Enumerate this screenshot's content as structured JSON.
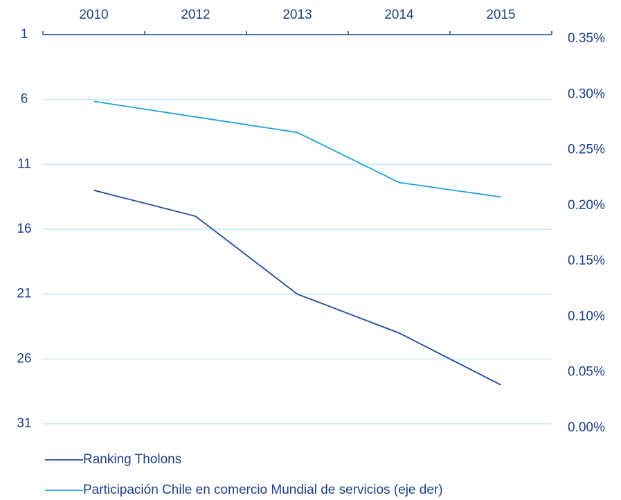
{
  "chart_data": {
    "type": "line",
    "categories": [
      "2010",
      "2012",
      "2013",
      "2014",
      "2015"
    ],
    "series": [
      {
        "name": "Ranking Tholons",
        "color": "#1b4a94",
        "values": [
          13,
          15,
          21,
          24,
          28
        ]
      },
      {
        "name": "Participación Chile en comercio Mundial de servicios (eje der)",
        "color": "#1ea0e0",
        "values": [
          0.29,
          0.276,
          0.262,
          0.217,
          0.204
        ],
        "axis": "y2"
      }
    ],
    "ylim": [
      31,
      1
    ],
    "yticks": [
      1,
      6,
      11,
      16,
      21,
      26,
      31
    ],
    "y2lim": [
      0,
      0.35
    ],
    "y2ticks": [
      {
        "value": 0.35,
        "label": "0.35%"
      },
      {
        "value": 0.3,
        "label": "0.30%"
      },
      {
        "value": 0.25,
        "label": "0.25%"
      },
      {
        "value": 0.2,
        "label": "0.20%"
      },
      {
        "value": 0.15,
        "label": "0.15%"
      },
      {
        "value": 0.1,
        "label": "0.10%"
      },
      {
        "value": 0.05,
        "label": "0.05%"
      },
      {
        "value": 0,
        "label": "0.00%"
      }
    ],
    "grid": true
  }
}
